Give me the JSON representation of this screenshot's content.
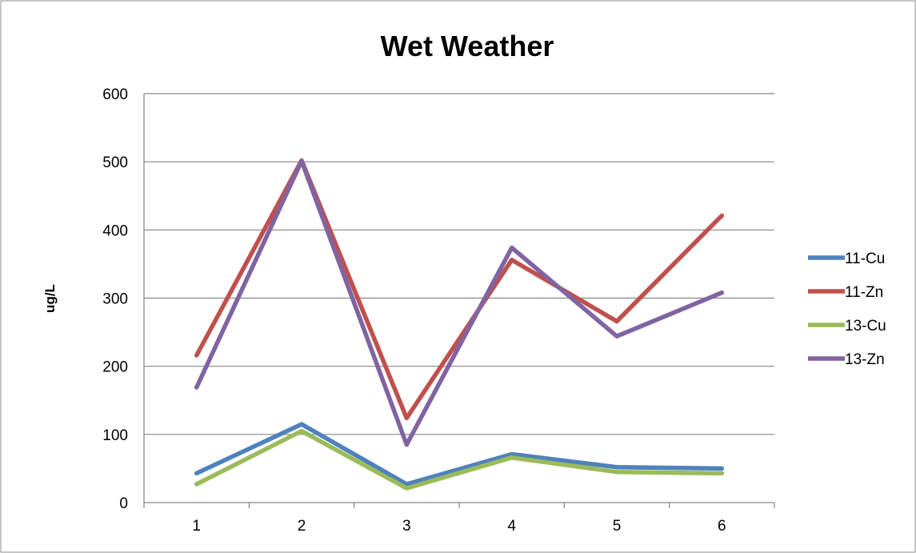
{
  "chart_data": {
    "type": "line",
    "title": "Wet Weather",
    "xlabel": "",
    "ylabel": "ug/L",
    "categories": [
      "1",
      "2",
      "3",
      "4",
      "5",
      "6"
    ],
    "ylim": [
      0,
      600
    ],
    "yticks": [
      0,
      100,
      200,
      300,
      400,
      500,
      600
    ],
    "grid": true,
    "legend_position": "right",
    "series": [
      {
        "name": "11-Cu",
        "color": "#4f81bd",
        "values": [
          43,
          115,
          27,
          71,
          52,
          50
        ]
      },
      {
        "name": "11-Zn",
        "color": "#c0504d",
        "values": [
          216,
          502,
          124,
          356,
          266,
          421
        ]
      },
      {
        "name": "13-Cu",
        "color": "#9bbb59",
        "values": [
          27,
          105,
          21,
          66,
          45,
          43
        ]
      },
      {
        "name": "13-Zn",
        "color": "#8064a2",
        "values": [
          169,
          501,
          85,
          374,
          244,
          308
        ]
      }
    ]
  }
}
